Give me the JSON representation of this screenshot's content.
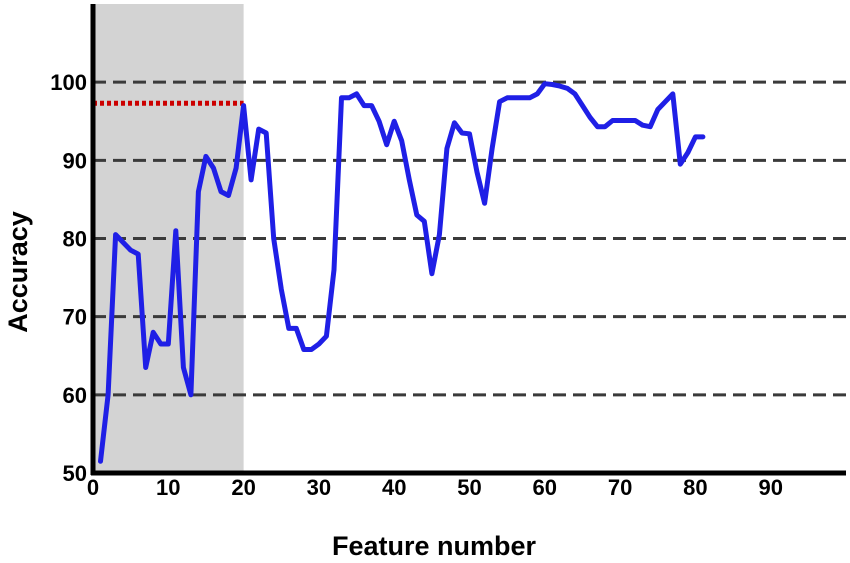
{
  "chart_data": {
    "type": "line",
    "title": "",
    "xlabel": "Feature number",
    "ylabel": "Accuracy",
    "xlim": [
      0,
      100
    ],
    "ylim": [
      50,
      110
    ],
    "x_ticks": [
      0,
      10,
      20,
      30,
      40,
      50,
      60,
      70,
      80,
      90
    ],
    "y_ticks": [
      50,
      60,
      70,
      80,
      90,
      100
    ],
    "grid": "horizontal-dashed",
    "gridlines_y": [
      60,
      70,
      80,
      90,
      100
    ],
    "highlight_region": {
      "x_start": 0,
      "x_end": 20,
      "color": "#d3d3d3"
    },
    "reference_line": {
      "y": 97.3,
      "x_start": 0,
      "x_end": 20,
      "color": "#cc0000",
      "style": "dotted"
    },
    "series": [
      {
        "color": "#1f1fe6",
        "x": [
          1,
          2,
          3,
          4,
          5,
          6,
          7,
          8,
          9,
          10,
          11,
          12,
          13,
          14,
          15,
          16,
          17,
          18,
          19,
          20,
          21,
          22,
          23,
          24,
          25,
          26,
          27,
          28,
          29,
          30,
          31,
          32,
          33,
          34,
          35,
          36,
          37,
          38,
          39,
          40,
          41,
          42,
          43,
          44,
          45,
          46,
          47,
          48,
          49,
          50,
          51,
          52,
          53,
          54,
          55,
          56,
          57,
          58,
          59,
          60,
          61,
          62,
          63,
          64,
          65,
          66,
          67,
          68,
          69,
          70,
          71,
          72,
          73,
          74,
          75,
          76,
          77,
          78,
          79,
          80,
          81
        ],
        "y": [
          51.5,
          60,
          80.5,
          79.5,
          78.5,
          78,
          63.5,
          68,
          66.5,
          66.5,
          81,
          63.5,
          60,
          86,
          90.5,
          89,
          86,
          85.5,
          89,
          97,
          87.5,
          94,
          93.5,
          80,
          73.5,
          68.5,
          68.5,
          65.8,
          65.8,
          66.5,
          67.5,
          76,
          98,
          98,
          98.5,
          97,
          97,
          95,
          92,
          95,
          92.5,
          87.5,
          83,
          82.2,
          75.5,
          80.5,
          91.5,
          94.8,
          93.5,
          93.4,
          88.5,
          84.5,
          91.5,
          97.5,
          98,
          98,
          98,
          98,
          98.5,
          99.8,
          99.7,
          99.5,
          99.2,
          98.5,
          97,
          95.5,
          94.3,
          94.3,
          95.1,
          95.1,
          95.1,
          95.1,
          94.5,
          94.3,
          96.5,
          97.5,
          98.5,
          89.5,
          91,
          93,
          93
        ]
      }
    ]
  }
}
